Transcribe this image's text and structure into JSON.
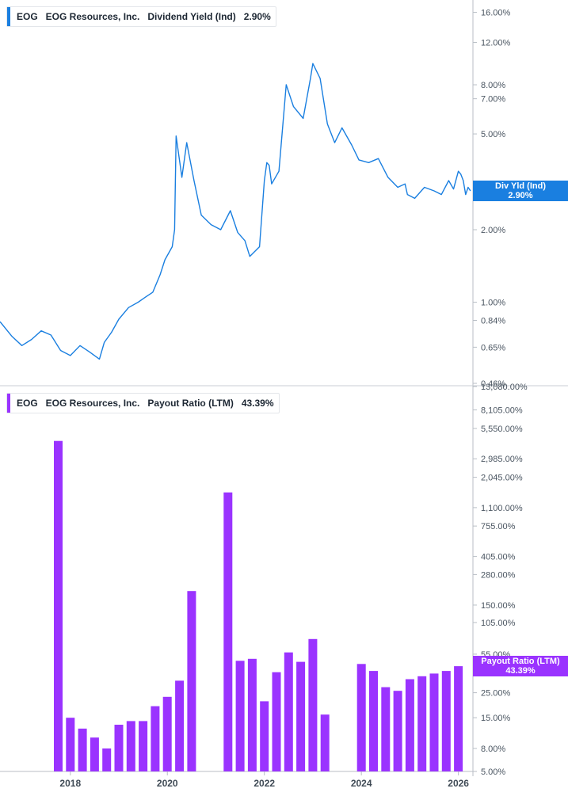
{
  "colors": {
    "yield_line": "#1a7fe0",
    "payout_bar": "#9a33ff",
    "axis": "#5a6570",
    "grid": "#d6d9dd"
  },
  "top_legend": {
    "ticker": "EOG",
    "company": "EOG Resources, Inc.",
    "metric": "Dividend Yield (Ind)",
    "value": "2.90%"
  },
  "bottom_legend": {
    "ticker": "EOG",
    "company": "EOG Resources, Inc.",
    "metric": "Payout Ratio (LTM)",
    "value": "43.39%"
  },
  "top_badge": {
    "label": "Div Yld (Ind)",
    "value": "2.90%"
  },
  "bottom_badge": {
    "label": "Payout Ratio (LTM)",
    "value": "43.39%"
  },
  "chart_data": [
    {
      "type": "line",
      "scale": "log",
      "ylim": [
        0.46,
        18.0
      ],
      "y_ticks": [
        "16.00%",
        "12.00%",
        "8.00%",
        "7.00%",
        "5.00%",
        "2.00%",
        "1.00%",
        "0.84%",
        "0.65%",
        "0.46%"
      ],
      "y_tick_values": [
        16.0,
        12.0,
        8.0,
        7.0,
        5.0,
        2.0,
        1.0,
        0.84,
        0.65,
        0.46
      ],
      "x_ticks": [
        "2018",
        "2020",
        "2022",
        "2024",
        "2026"
      ],
      "x_tick_values": [
        2018,
        2020,
        2022,
        2024,
        2026
      ],
      "xlim": [
        2016.55,
        2026.3
      ],
      "series": [
        {
          "name": "Div Yld (Ind)",
          "x": [
            2016.55,
            2016.8,
            2017.0,
            2017.2,
            2017.4,
            2017.6,
            2017.8,
            2018.0,
            2018.2,
            2018.4,
            2018.6,
            2018.7,
            2018.85,
            2019.0,
            2019.2,
            2019.4,
            2019.55,
            2019.7,
            2019.85,
            2019.95,
            2020.1,
            2020.15,
            2020.18,
            2020.3,
            2020.4,
            2020.55,
            2020.7,
            2020.9,
            2021.1,
            2021.3,
            2021.45,
            2021.6,
            2021.7,
            2021.9,
            2022.0,
            2022.05,
            2022.1,
            2022.15,
            2022.3,
            2022.45,
            2022.6,
            2022.8,
            2022.95,
            2023.0,
            2023.15,
            2023.3,
            2023.45,
            2023.6,
            2023.8,
            2023.95,
            2024.15,
            2024.35,
            2024.55,
            2024.75,
            2024.9,
            2024.95,
            2025.1,
            2025.3,
            2025.5,
            2025.65,
            2025.8,
            2025.9,
            2026.0,
            2026.05,
            2026.1,
            2026.15,
            2026.2,
            2026.25
          ],
          "y": [
            0.83,
            0.72,
            0.66,
            0.7,
            0.76,
            0.73,
            0.63,
            0.6,
            0.66,
            0.62,
            0.58,
            0.68,
            0.75,
            0.85,
            0.95,
            1.0,
            1.05,
            1.1,
            1.3,
            1.5,
            1.7,
            2.0,
            4.9,
            3.3,
            4.6,
            3.2,
            2.3,
            2.1,
            2.0,
            2.4,
            1.95,
            1.8,
            1.55,
            1.7,
            3.2,
            3.8,
            3.7,
            3.1,
            3.5,
            8.0,
            6.5,
            5.8,
            8.5,
            9.8,
            8.5,
            5.5,
            4.6,
            5.3,
            4.5,
            3.9,
            3.8,
            3.95,
            3.3,
            3.0,
            3.1,
            2.8,
            2.7,
            3.0,
            2.9,
            2.8,
            3.2,
            2.95,
            3.5,
            3.4,
            3.2,
            2.8,
            3.0,
            2.9
          ]
        }
      ]
    },
    {
      "type": "bar",
      "scale": "log",
      "ylim": [
        5.0,
        13080.0
      ],
      "y_ticks": [
        "13,080.00%",
        "8,105.00%",
        "5,550.00%",
        "2,985.00%",
        "2,045.00%",
        "1,100.00%",
        "755.00%",
        "405.00%",
        "280.00%",
        "150.00%",
        "105.00%",
        "55.00%",
        "25.00%",
        "15.00%",
        "8.00%",
        "5.00%"
      ],
      "y_tick_values": [
        13080,
        8105,
        5550,
        2985,
        2045,
        1100,
        755,
        405,
        280,
        150,
        105,
        55,
        25,
        15,
        8,
        5
      ],
      "x_ticks": [
        "2018",
        "2020",
        "2022",
        "2024",
        "2026"
      ],
      "x_tick_values": [
        2018,
        2020,
        2022,
        2024,
        2026
      ],
      "xlim": [
        2016.55,
        2026.3
      ],
      "series": [
        {
          "name": "Payout Ratio (LTM)",
          "x": [
            2017.75,
            2018.0,
            2018.25,
            2018.5,
            2018.75,
            2019.0,
            2019.25,
            2019.5,
            2019.75,
            2020.0,
            2020.25,
            2020.5,
            2021.25,
            2021.5,
            2021.75,
            2022.0,
            2022.25,
            2022.5,
            2022.75,
            2023.0,
            2023.25,
            2024.0,
            2024.25,
            2024.5,
            2024.75,
            2025.0,
            2025.25,
            2025.5,
            2025.75,
            2026.0
          ],
          "y": [
            4300,
            15,
            12,
            10,
            8,
            13,
            14,
            14,
            19,
            23,
            32,
            200,
            1500,
            48,
            50,
            21,
            38,
            57,
            47,
            75,
            16,
            45,
            39,
            28,
            26,
            33,
            35,
            37,
            39,
            43
          ]
        }
      ]
    }
  ]
}
